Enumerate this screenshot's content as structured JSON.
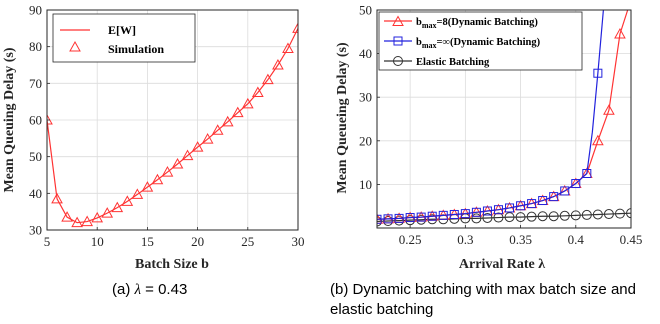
{
  "chart_data": [
    {
      "type": "line",
      "panel": "(a)",
      "xlabel": "Batch Size b",
      "ylabel": "Mean Queuing Delay (s)",
      "xlim": [
        5,
        30
      ],
      "ylim": [
        30,
        90
      ],
      "xticks": [
        5,
        10,
        15,
        20,
        25,
        30
      ],
      "yticks": [
        30,
        40,
        50,
        60,
        70,
        80,
        90
      ],
      "grid": true,
      "legend_position": "top-left",
      "legend": [
        "E[W]",
        "Simulation"
      ],
      "series": [
        {
          "name": "E[W]",
          "style": "line",
          "color": "#ff3333",
          "x": [
            5,
            6,
            7,
            8,
            9,
            10,
            11,
            12,
            13,
            14,
            15,
            16,
            17,
            18,
            19,
            20,
            21,
            22,
            23,
            24,
            25,
            26,
            27,
            28,
            29,
            30
          ],
          "y": [
            60.0,
            38.5,
            33.5,
            32.0,
            32.3,
            33.3,
            34.6,
            36.1,
            37.8,
            39.7,
            41.7,
            43.7,
            45.8,
            48.0,
            50.3,
            52.6,
            54.8,
            57.2,
            59.5,
            62.0,
            64.4,
            67.5,
            71.0,
            75.0,
            79.5,
            85.0
          ]
        },
        {
          "name": "Simulation",
          "style": "markers",
          "marker": "triangle",
          "color": "#ff3333",
          "x": [
            5,
            6,
            7,
            8,
            9,
            10,
            11,
            12,
            13,
            14,
            15,
            16,
            17,
            18,
            19,
            20,
            21,
            22,
            23,
            24,
            25,
            26,
            27,
            28,
            29,
            30
          ],
          "y": [
            60.0,
            38.5,
            33.5,
            32.0,
            32.3,
            33.3,
            34.6,
            36.1,
            37.8,
            39.7,
            41.7,
            43.7,
            45.8,
            48.0,
            50.3,
            52.6,
            54.8,
            57.2,
            59.5,
            62.0,
            64.4,
            67.5,
            71.0,
            75.0,
            79.5,
            85.0
          ]
        }
      ]
    },
    {
      "type": "line",
      "panel": "(b)",
      "xlabel": "Arrival Rate λ",
      "ylabel": "Mean Queueing Delay (s)",
      "xlim": [
        0.22,
        0.45
      ],
      "ylim": [
        0,
        50
      ],
      "xticks": [
        0.25,
        0.3,
        0.35,
        0.4,
        0.45
      ],
      "xticklabels": [
        "0.25",
        "0.3",
        "0.35",
        "0.4",
        "0.45"
      ],
      "yticks": [
        10,
        20,
        30,
        40,
        50
      ],
      "grid": true,
      "legend_position": "top-left",
      "legend": [
        "b_max=8(Dynamic Batching)",
        "b_max=∞(Dynamic Batching)",
        "Elastic Batching"
      ],
      "series": [
        {
          "name": "b_max=8(Dynamic Batching)",
          "color": "#ff3333",
          "marker": "triangle",
          "x": [
            0.22,
            0.23,
            0.24,
            0.25,
            0.26,
            0.27,
            0.28,
            0.29,
            0.3,
            0.31,
            0.32,
            0.33,
            0.34,
            0.35,
            0.36,
            0.37,
            0.38,
            0.39,
            0.4,
            0.41,
            0.42,
            0.43,
            0.44,
            0.447
          ],
          "y": [
            2.0,
            2.1,
            2.2,
            2.4,
            2.5,
            2.7,
            2.9,
            3.1,
            3.3,
            3.6,
            3.9,
            4.2,
            4.6,
            5.1,
            5.6,
            6.3,
            7.2,
            8.5,
            10.2,
            12.5,
            20.0,
            27.0,
            44.5,
            50.0
          ],
          "marker_x": [
            0.22,
            0.23,
            0.24,
            0.25,
            0.26,
            0.27,
            0.28,
            0.29,
            0.3,
            0.31,
            0.32,
            0.33,
            0.34,
            0.35,
            0.36,
            0.37,
            0.38,
            0.39,
            0.4,
            0.41,
            0.42,
            0.43,
            0.44
          ]
        },
        {
          "name": "b_max=∞(Dynamic Batching)",
          "color": "#2222dd",
          "marker": "square",
          "x": [
            0.22,
            0.23,
            0.24,
            0.25,
            0.26,
            0.27,
            0.28,
            0.29,
            0.3,
            0.31,
            0.32,
            0.33,
            0.34,
            0.35,
            0.36,
            0.37,
            0.38,
            0.39,
            0.4,
            0.41,
            0.415,
            0.42,
            0.425
          ],
          "y": [
            2.0,
            2.1,
            2.2,
            2.4,
            2.5,
            2.7,
            2.9,
            3.1,
            3.3,
            3.6,
            3.9,
            4.2,
            4.6,
            5.1,
            5.6,
            6.3,
            7.2,
            8.5,
            10.2,
            12.5,
            22.0,
            35.5,
            50.0
          ],
          "marker_x": [
            0.22,
            0.23,
            0.24,
            0.25,
            0.26,
            0.27,
            0.28,
            0.29,
            0.3,
            0.31,
            0.32,
            0.33,
            0.34,
            0.35,
            0.36,
            0.37,
            0.38,
            0.39,
            0.4,
            0.41,
            0.42
          ]
        },
        {
          "name": "Elastic Batching",
          "color": "#333333",
          "marker": "circle",
          "x": [
            0.22,
            0.23,
            0.24,
            0.25,
            0.26,
            0.27,
            0.28,
            0.29,
            0.3,
            0.31,
            0.32,
            0.33,
            0.34,
            0.35,
            0.36,
            0.37,
            0.38,
            0.39,
            0.4,
            0.41,
            0.42,
            0.43,
            0.44,
            0.45
          ],
          "y": [
            1.5,
            1.6,
            1.7,
            1.8,
            1.9,
            2.0,
            2.0,
            2.1,
            2.2,
            2.2,
            2.3,
            2.4,
            2.5,
            2.5,
            2.6,
            2.7,
            2.7,
            2.8,
            2.9,
            3.0,
            3.1,
            3.2,
            3.3,
            3.4
          ],
          "marker_x": [
            0.22,
            0.23,
            0.24,
            0.25,
            0.26,
            0.27,
            0.28,
            0.29,
            0.3,
            0.31,
            0.32,
            0.33,
            0.34,
            0.35,
            0.36,
            0.37,
            0.38,
            0.39,
            0.4,
            0.41,
            0.42,
            0.43,
            0.44,
            0.45
          ]
        }
      ]
    }
  ],
  "legend_b": [
    {
      "main": "b",
      "sub": "max",
      "tail": "=8(Dynamic Batching)"
    },
    {
      "main": "b",
      "sub": "max",
      "tail": "=∞(Dynamic Batching)"
    },
    {
      "main": "",
      "sub": "",
      "tail": "Elastic Batching"
    }
  ],
  "captions": {
    "a_prefix": "(a) ",
    "a_symbol": "λ",
    "a_suffix": " = 0.43",
    "b": "(b) Dynamic batching with max batch size and elastic batching"
  }
}
